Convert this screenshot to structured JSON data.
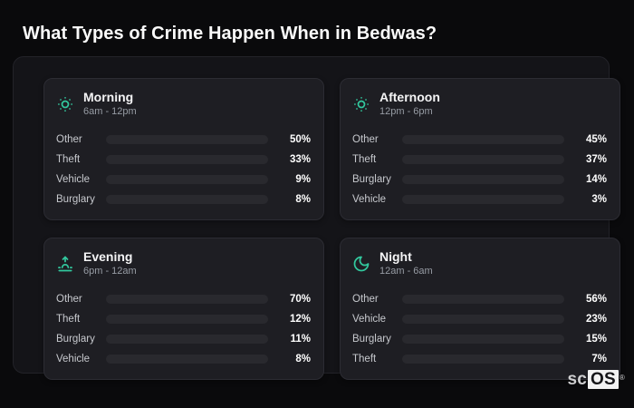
{
  "title": "What Types of Crime Happen When in Bedwas?",
  "logo": {
    "prefix": "sc",
    "suffix": "OS",
    "registered": "®"
  },
  "colors": {
    "other": "#64748b",
    "theft": "#a855f7",
    "vehicle": "#3b82f6",
    "burglary": "#e2661c",
    "accent": "#32c89e",
    "bar_track": "#29292e",
    "card_bg": "#1e1e23",
    "page_bg": "#0a0a0c"
  },
  "chart_data": [
    {
      "type": "bar",
      "title": "Morning",
      "subtitle": "6am - 12pm",
      "icon": "sun-dim-icon",
      "categories": [
        "Other",
        "Theft",
        "Vehicle",
        "Burglary"
      ],
      "values": [
        50,
        33,
        9,
        8
      ],
      "value_labels": [
        "50%",
        "33%",
        "9%",
        "8%"
      ],
      "color_keys": [
        "other",
        "theft",
        "vehicle",
        "burglary"
      ],
      "xlim": [
        0,
        100
      ]
    },
    {
      "type": "bar",
      "title": "Afternoon",
      "subtitle": "12pm - 6pm",
      "icon": "sun-dim-icon",
      "categories": [
        "Other",
        "Theft",
        "Burglary",
        "Vehicle"
      ],
      "values": [
        45,
        37,
        14,
        3
      ],
      "value_labels": [
        "45%",
        "37%",
        "14%",
        "3%"
      ],
      "color_keys": [
        "other",
        "theft",
        "burglary",
        "vehicle"
      ],
      "xlim": [
        0,
        100
      ]
    },
    {
      "type": "bar",
      "title": "Evening",
      "subtitle": "6pm - 12am",
      "icon": "sunrise-icon",
      "categories": [
        "Other",
        "Theft",
        "Burglary",
        "Vehicle"
      ],
      "values": [
        70,
        12,
        11,
        8
      ],
      "value_labels": [
        "70%",
        "12%",
        "11%",
        "8%"
      ],
      "color_keys": [
        "other",
        "theft",
        "burglary",
        "vehicle"
      ],
      "xlim": [
        0,
        100
      ]
    },
    {
      "type": "bar",
      "title": "Night",
      "subtitle": "12am - 6am",
      "icon": "moon-icon",
      "categories": [
        "Other",
        "Vehicle",
        "Burglary",
        "Theft"
      ],
      "values": [
        56,
        23,
        15,
        7
      ],
      "value_labels": [
        "56%",
        "23%",
        "15%",
        "7%"
      ],
      "color_keys": [
        "other",
        "vehicle",
        "burglary",
        "theft"
      ],
      "xlim": [
        0,
        100
      ]
    }
  ]
}
